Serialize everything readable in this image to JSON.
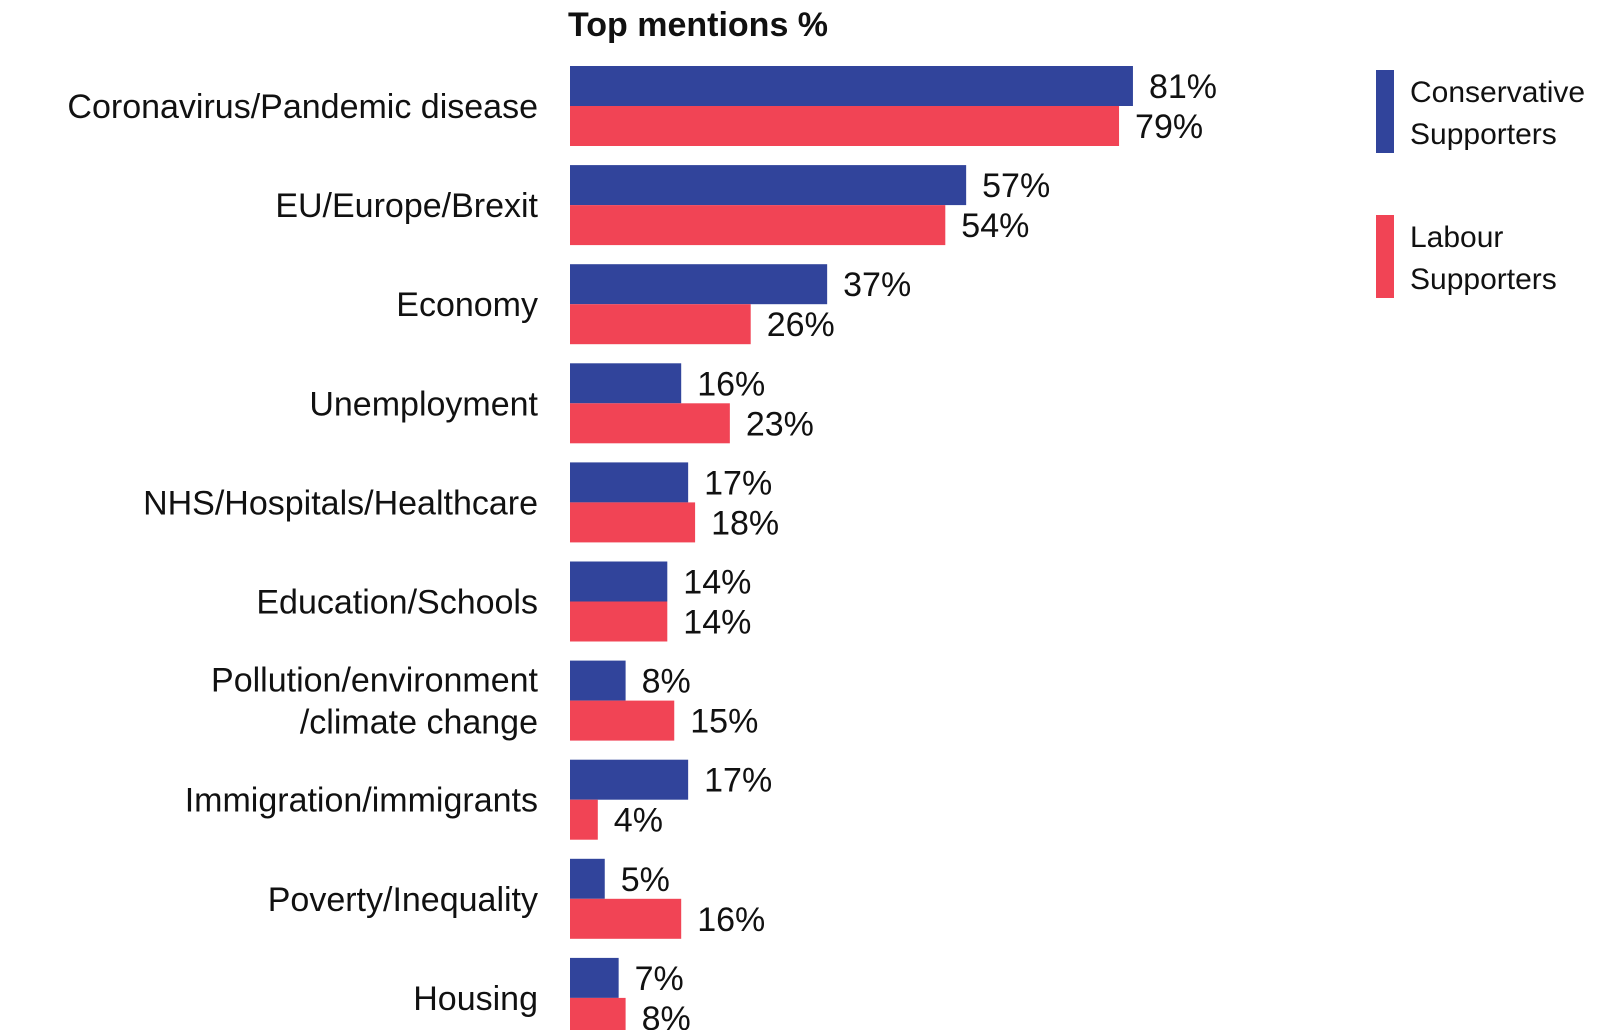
{
  "chart_data": {
    "type": "bar",
    "orientation": "horizontal",
    "title": "Top mentions %",
    "categories": [
      [
        "Coronavirus/Pandemic disease"
      ],
      [
        "EU/Europe/Brexit"
      ],
      [
        "Economy"
      ],
      [
        "Unemployment"
      ],
      [
        "NHS/Hospitals/Healthcare"
      ],
      [
        "Education/Schools"
      ],
      [
        "Pollution/environment",
        "/climate change"
      ],
      [
        "Immigration/immigrants"
      ],
      [
        "Poverty/Inequality"
      ],
      [
        "Housing"
      ]
    ],
    "series": [
      {
        "name": [
          "Conservative",
          "Supporters"
        ],
        "color": "#31449b",
        "values": [
          81,
          57,
          37,
          16,
          17,
          14,
          8,
          17,
          5,
          7
        ]
      },
      {
        "name": [
          "Labour",
          "Supporters"
        ],
        "color": "#f14455",
        "values": [
          79,
          54,
          26,
          23,
          18,
          14,
          15,
          4,
          16,
          8
        ]
      }
    ],
    "value_suffix": "%",
    "xlim": [
      0,
      100
    ],
    "grid": false,
    "legend_position": "top-right"
  }
}
